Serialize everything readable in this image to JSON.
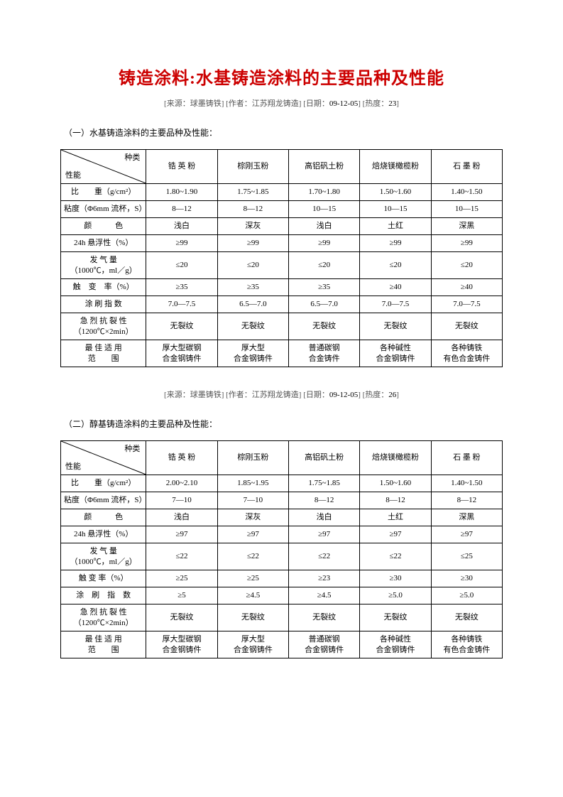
{
  "title": "铸造涂料:水基铸造涂料的主要品种及性能",
  "meta1": {
    "source_label": "[来源：",
    "source": "球墨铸铁",
    "author_label": "]   [作者：",
    "author": "江苏翔龙铸造",
    "date_label": "] [日期：",
    "date": "09-12-05",
    "heat_label": "] [热度：",
    "heat": "23",
    "close": "]"
  },
  "section1_label": "（一）水基铸造涂料的主要品种及性能：",
  "diag_top": "种类",
  "diag_bottom": "性能",
  "table1": {
    "columns": [
      "锆 英 粉",
      "棕刚玉粉",
      "高铝矾土粉",
      "焙烧镁橄榄粉",
      "石 墨 粉"
    ],
    "rows": [
      {
        "h": "比　　重（g/cm²）",
        "v": [
          "1.80~1.90",
          "1.75~1.85",
          "1.70~1.80",
          "1.50~1.60",
          "1.40~1.50"
        ],
        "tall": false
      },
      {
        "h": "粘度（Φ6mm 流杯，S）",
        "v": [
          "8—12",
          "8—12",
          "10—15",
          "10—15",
          "10—15"
        ],
        "tall": false
      },
      {
        "h": "颜　　　色",
        "v": [
          "浅白",
          "深灰",
          "浅白",
          "土红",
          "深黑"
        ],
        "tall": false
      },
      {
        "h": "24h 悬浮性（%）",
        "v": [
          "≥99",
          "≥99",
          "≥99",
          "≥99",
          "≥99"
        ],
        "tall": false
      },
      {
        "h": "发 气 量\n（1000℃，ml／g）",
        "v": [
          "≤20",
          "≤20",
          "≤20",
          "≤20",
          "≤20"
        ],
        "tall": true
      },
      {
        "h": "触　变　率（%）",
        "v": [
          "≥35",
          "≥35",
          "≥35",
          "≥40",
          "≥40"
        ],
        "tall": false
      },
      {
        "h": "涂 刷 指 数",
        "v": [
          "7.0—7.5",
          "6.5—7.0",
          "6.5—7.0",
          "7.0—7.5",
          "7.0—7.5"
        ],
        "tall": false
      },
      {
        "h": "急 烈 抗 裂 性\n（1200℃×2min）",
        "v": [
          "无裂纹",
          "无裂纹",
          "无裂纹",
          "无裂纹",
          "无裂纹"
        ],
        "tall": true
      },
      {
        "h": "最 佳 适 用\n范　　围",
        "v": [
          "厚大型碳钢\n合金钢铸件",
          "厚大型\n合金钢铸件",
          "普通碳钢\n合金铸件",
          "各种碱性\n合金钢铸件",
          "各种铸铁\n有色合金铸件"
        ],
        "tall": true
      }
    ]
  },
  "meta2": {
    "source_label": "[来源：",
    "source": "球墨铸铁",
    "author_label": "]   [作者：",
    "author": "江苏翔龙铸造",
    "date_label": "] [日期：",
    "date": "09-12-05",
    "heat_label": "] [热度：",
    "heat": "26",
    "close": "]"
  },
  "section2_label": "（二）醇基铸造涂料的主要品种及性能：",
  "table2": {
    "columns": [
      "锆 英 粉",
      "棕刚玉粉",
      "高铝矾土粉",
      "焙烧镁橄榄粉",
      "石 墨 粉"
    ],
    "rows": [
      {
        "h": "比　　重（g/cm²）",
        "v": [
          "2.00~2.10",
          "1.85~1.95",
          "1.75~1.85",
          "1.50~1.60",
          "1.40~1.50"
        ],
        "tall": false
      },
      {
        "h": "粘度（Φ6mm 流杯，S）",
        "v": [
          "7—10",
          "7—10",
          "8—12",
          "8—12",
          "8—12"
        ],
        "tall": false
      },
      {
        "h": "颜　　　色",
        "v": [
          "浅白",
          "深灰",
          "浅白",
          "土红",
          "深黑"
        ],
        "tall": false
      },
      {
        "h": "24h 悬浮性（%）",
        "v": [
          "≥97",
          "≥97",
          "≥97",
          "≥97",
          "≥97"
        ],
        "tall": false
      },
      {
        "h": "发 气 量\n（1000℃，ml／g）",
        "v": [
          "≤22",
          "≤22",
          "≤22",
          "≤22",
          "≤25"
        ],
        "tall": true
      },
      {
        "h": "触 变 率（%）",
        "v": [
          "≥25",
          "≥25",
          "≥23",
          "≥30",
          "≥30"
        ],
        "tall": false
      },
      {
        "h": "涂　刷　指　数",
        "v": [
          "≥5",
          "≥4.5",
          "≥4.5",
          "≥5.0",
          "≥5.0"
        ],
        "tall": false
      },
      {
        "h": "急 烈 抗 裂 性\n（1200℃×2min）",
        "v": [
          "无裂纹",
          "无裂纹",
          "无裂纹",
          "无裂纹",
          "无裂纹"
        ],
        "tall": true
      },
      {
        "h": "最 佳 适 用\n范　　围",
        "v": [
          "厚大型碳钢\n合金钢铸件",
          "厚大型\n合金钢铸件",
          "普通碳钢\n合金钢铸件",
          "各种碱性\n合金钢铸件",
          "各种铸铁\n有色合金铸件"
        ],
        "tall": true
      }
    ]
  },
  "colors": {
    "title": "#cc0000",
    "text": "#000000",
    "meta": "#555555",
    "border": "#000000",
    "bg": "#ffffff"
  }
}
